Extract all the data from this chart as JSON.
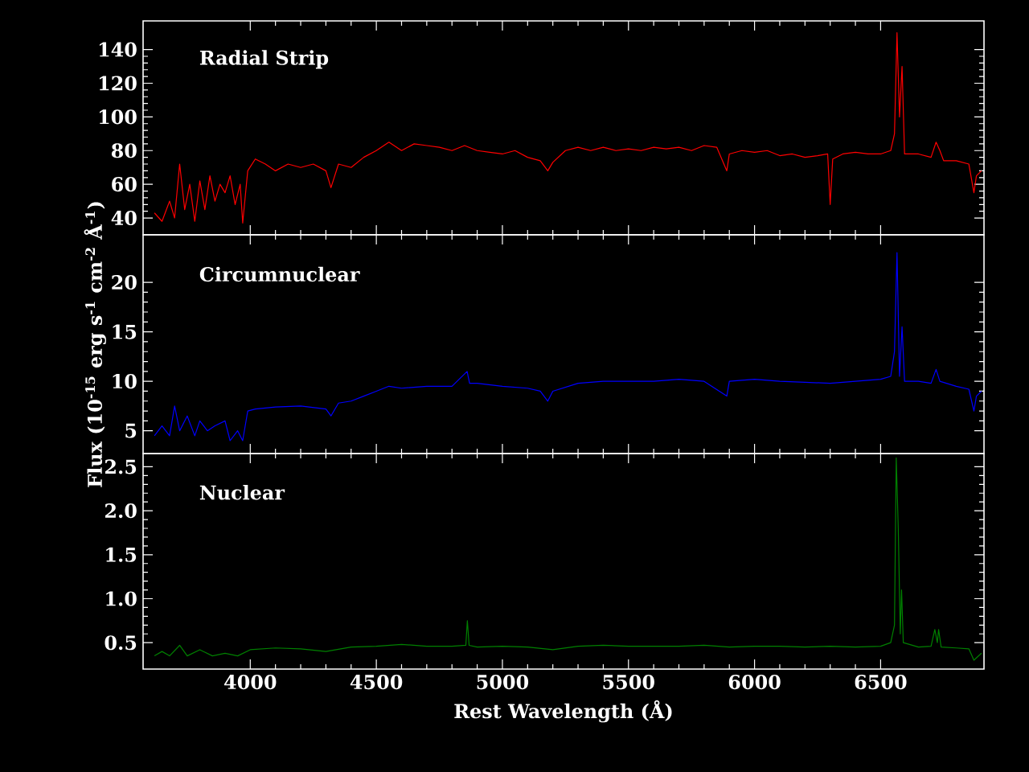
{
  "chart_data": [
    {
      "type": "line",
      "annotations": [
        "Radial Strip"
      ],
      "xlim": [
        3575,
        6910
      ],
      "ylim": [
        30,
        157
      ],
      "xticks": [
        4000,
        4500,
        5000,
        5500,
        6000,
        6500
      ],
      "yticks": [
        40,
        60,
        80,
        100,
        120,
        140
      ],
      "tick_labels": "y",
      "series": [
        {
          "color": "#ff0000",
          "x": [
            3620,
            3650,
            3680,
            3700,
            3720,
            3740,
            3760,
            3780,
            3800,
            3820,
            3840,
            3860,
            3880,
            3900,
            3920,
            3940,
            3960,
            3970,
            3990,
            4020,
            4060,
            4100,
            4150,
            4200,
            4250,
            4300,
            4320,
            4350,
            4400,
            4450,
            4500,
            4550,
            4600,
            4650,
            4700,
            4750,
            4800,
            4850,
            4900,
            4950,
            5000,
            5050,
            5100,
            5150,
            5180,
            5200,
            5250,
            5300,
            5350,
            5400,
            5450,
            5500,
            5550,
            5600,
            5650,
            5700,
            5750,
            5800,
            5850,
            5890,
            5900,
            5950,
            6000,
            6050,
            6100,
            6150,
            6200,
            6250,
            6290,
            6300,
            6310,
            6350,
            6400,
            6450,
            6500,
            6540,
            6555,
            6565,
            6575,
            6585,
            6595,
            6650,
            6700,
            6720,
            6735,
            6750,
            6800,
            6850,
            6870,
            6880,
            6900
          ],
          "values": [
            43,
            38,
            50,
            40,
            72,
            45,
            60,
            38,
            62,
            45,
            65,
            50,
            60,
            55,
            65,
            48,
            60,
            37,
            68,
            75,
            72,
            68,
            72,
            70,
            72,
            68,
            58,
            72,
            70,
            76,
            80,
            85,
            80,
            84,
            83,
            82,
            80,
            83,
            80,
            79,
            78,
            80,
            76,
            74,
            68,
            73,
            80,
            82,
            80,
            82,
            80,
            81,
            80,
            82,
            81,
            82,
            80,
            83,
            82,
            68,
            78,
            80,
            79,
            80,
            77,
            78,
            76,
            77,
            78,
            48,
            75,
            78,
            79,
            78,
            78,
            80,
            90,
            150,
            100,
            130,
            78,
            78,
            76,
            85,
            80,
            74,
            74,
            72,
            55,
            65,
            68
          ]
        }
      ]
    },
    {
      "type": "line",
      "annotations": [
        "Circumnuclear"
      ],
      "ylabel": "Flux (10$^{-15}$ erg s$^{-1}$ cm$^{-2}$ Å$^{-1}$)",
      "xlim": [
        3575,
        6910
      ],
      "ylim": [
        2.7,
        24.8
      ],
      "xticks": [
        4000,
        4500,
        5000,
        5500,
        6000,
        6500
      ],
      "yticks": [
        5,
        10,
        15,
        20
      ],
      "tick_labels": "y",
      "series": [
        {
          "color": "#0000ff",
          "x": [
            3620,
            3650,
            3680,
            3700,
            3720,
            3750,
            3780,
            3800,
            3830,
            3860,
            3900,
            3920,
            3950,
            3970,
            3990,
            4020,
            4100,
            4200,
            4300,
            4320,
            4350,
            4400,
            4450,
            4500,
            4550,
            4600,
            4700,
            4800,
            4860,
            4870,
            4900,
            5000,
            5100,
            5150,
            5180,
            5200,
            5300,
            5400,
            5500,
            5600,
            5700,
            5800,
            5890,
            5900,
            6000,
            6100,
            6200,
            6300,
            6400,
            6500,
            6540,
            6555,
            6565,
            6575,
            6585,
            6595,
            6650,
            6700,
            6720,
            6735,
            6800,
            6850,
            6870,
            6880,
            6900
          ],
          "values": [
            4.5,
            5.5,
            4.5,
            7.5,
            5,
            6.5,
            4.5,
            6,
            5,
            5.5,
            6,
            4,
            5,
            4,
            7,
            7.2,
            7.4,
            7.5,
            7.2,
            6.5,
            7.8,
            8,
            8.5,
            9,
            9.5,
            9.3,
            9.5,
            9.5,
            11,
            9.8,
            9.8,
            9.5,
            9.3,
            9,
            8,
            9,
            9.8,
            10,
            10,
            10,
            10.2,
            10,
            8.5,
            10,
            10.2,
            10,
            9.9,
            9.8,
            10,
            10.2,
            10.5,
            13,
            23,
            10.5,
            15.5,
            10,
            10,
            9.8,
            11.2,
            10,
            9.5,
            9.2,
            7,
            8.5,
            9
          ]
        }
      ]
    },
    {
      "type": "line",
      "annotations": [
        "Nuclear"
      ],
      "xlabel": "Rest Wavelength (Å)",
      "xlim": [
        3575,
        6910
      ],
      "ylim": [
        0.2,
        2.65
      ],
      "xticks": [
        4000,
        4500,
        5000,
        5500,
        6000,
        6500
      ],
      "yticks": [
        0.5,
        {
          "value": 1,
          "label": "1.0"
        },
        1.5,
        {
          "value": 2,
          "label": "2.0"
        },
        2.5
      ],
      "series": [
        {
          "color": "#008000",
          "x": [
            3620,
            3650,
            3680,
            3720,
            3750,
            3800,
            3850,
            3900,
            3950,
            4000,
            4100,
            4200,
            4300,
            4400,
            4500,
            4600,
            4700,
            4800,
            4855,
            4861,
            4868,
            4900,
            5000,
            5100,
            5200,
            5300,
            5400,
            5500,
            5600,
            5700,
            5800,
            5900,
            6000,
            6100,
            6200,
            6300,
            6400,
            6500,
            6540,
            6555,
            6562,
            6570,
            6578,
            6583,
            6590,
            6650,
            6700,
            6715,
            6725,
            6730,
            6740,
            6800,
            6850,
            6870,
            6900
          ],
          "values": [
            0.35,
            0.4,
            0.35,
            0.47,
            0.35,
            0.42,
            0.35,
            0.38,
            0.35,
            0.42,
            0.44,
            0.43,
            0.4,
            0.45,
            0.46,
            0.48,
            0.46,
            0.46,
            0.47,
            0.75,
            0.47,
            0.45,
            0.46,
            0.45,
            0.42,
            0.46,
            0.47,
            0.46,
            0.46,
            0.46,
            0.47,
            0.45,
            0.46,
            0.46,
            0.45,
            0.46,
            0.45,
            0.46,
            0.5,
            0.7,
            2.6,
            1.8,
            0.6,
            1.1,
            0.5,
            0.45,
            0.46,
            0.65,
            0.5,
            0.65,
            0.45,
            0.44,
            0.43,
            0.3,
            0.38
          ]
        }
      ]
    }
  ]
}
